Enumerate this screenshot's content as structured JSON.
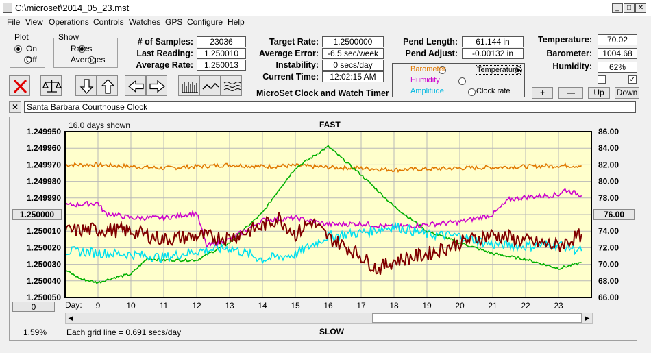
{
  "window": {
    "title": "C:\\microset\\2014_05_23.mst",
    "minimize": "_",
    "maximize": "□",
    "close": "✕"
  },
  "menu": [
    "File",
    "View",
    "Operations",
    "Controls",
    "Watches",
    "GPS",
    "Configure",
    "Help"
  ],
  "plot_group": {
    "title": "Plot",
    "on": "On",
    "off": "Off",
    "selected": "On"
  },
  "show_group": {
    "title": "Show",
    "rates": "Rates",
    "averages": "Averages",
    "selected": "Rates"
  },
  "stats": {
    "samples_label": "# of Samples:",
    "samples": "23036",
    "last_label": "Last Reading:",
    "last": "1.250010",
    "avg_label": "Average Rate:",
    "avg": "1.250013",
    "target_label": "Target Rate:",
    "target": "1.2500000",
    "avgerr_label": "Average Error:",
    "avgerr": "-6.5 sec/week",
    "instab_label": "Instability:",
    "instab": "0 secs/day",
    "time_label": "Current Time:",
    "time": "12:02:15 AM",
    "pendlen_label": "Pend Length:",
    "pendlen": "61.144 in",
    "pendadj_label": "Pend Adjust:",
    "pendadj": "-0.00132 in",
    "temp_label": "Temperature:",
    "temp": "70.02",
    "baro_label": "Barometer:",
    "baro": "1004.68",
    "hum_label": "Humidity:",
    "hum": "62%"
  },
  "app_caption": "MicroSet Clock and Watch Timer",
  "aux_options": {
    "barometer": "Barometer",
    "temperature": "Temperature",
    "humidity": "Humidity",
    "amplitude": "Amplitude",
    "clockrate": "Clock rate",
    "selected": "Temperature",
    "colors": {
      "barometer": "#e07800",
      "temperature": "#000000",
      "humidity": "#cc00cc",
      "amplitude": "#00b8e0",
      "clockrate": "#000000"
    }
  },
  "scale_buttons": {
    "plus": "+",
    "minus": "—",
    "up": "Up",
    "down": "Down"
  },
  "checkboxes": {
    "left": "",
    "right": "✓"
  },
  "toolbar_icons": [
    "clear-icon",
    "balance-icon",
    "arrow-down-icon",
    "arrow-up-icon",
    "arrow-left-icon",
    "arrow-right-icon",
    "bars-icon",
    "wave-icon",
    "multi-wave-icon"
  ],
  "watch_name": {
    "close": "✕",
    "value": "Santa Barbara Courthouse Clock"
  },
  "plot": {
    "days_shown": "16.0 days shown",
    "fast": "FAST",
    "slow": "SLOW",
    "left_center": "1.250000",
    "right_center": "76.00",
    "bottom_left": "0",
    "percent": "1.59%",
    "grid_note": "Each grid line = 0.691 secs/day",
    "day_label": "Day:"
  },
  "chart_data": {
    "type": "line",
    "bg": "#ffffcc",
    "xlabel": "Day:",
    "x_ticks": [
      9,
      10,
      11,
      12,
      13,
      14,
      15,
      16,
      17,
      18,
      19,
      20,
      21,
      22,
      23
    ],
    "xlim": [
      8.0,
      24.0
    ],
    "y_left_ticks": [
      "1.249950",
      "1.249960",
      "1.249970",
      "1.249980",
      "1.249990",
      "1.250000",
      "1.250010",
      "1.250020",
      "1.250030",
      "1.250040",
      "1.250050"
    ],
    "ylim_left": [
      1.24995,
      1.25005
    ],
    "y_right_ticks": [
      "86.00",
      "84.00",
      "82.00",
      "80.00",
      "78.00",
      "76.00",
      "74.00",
      "72.00",
      "70.00",
      "68.00",
      "66.00"
    ],
    "ylim_right": [
      66,
      86
    ],
    "series": [
      {
        "name": "",
        "color": "#e07800",
        "axis": "right",
        "x": [
          8.0,
          9,
          10,
          11,
          12,
          13,
          14,
          15,
          16,
          17,
          18,
          19,
          20,
          21,
          22,
          23,
          23.7
        ],
        "values": [
          82.0,
          82.0,
          81.8,
          81.6,
          81.8,
          82.0,
          81.8,
          81.9,
          81.7,
          81.6,
          81.4,
          81.5,
          81.6,
          81.7,
          81.8,
          81.9,
          81.9
        ]
      },
      {
        "name": "",
        "color": "#00b000",
        "axis": "right",
        "x": [
          8.0,
          8.5,
          9,
          9.5,
          10,
          10.5,
          11,
          12,
          13,
          14,
          14.5,
          15,
          16,
          17,
          18,
          19,
          20,
          21,
          22,
          23,
          23.7
        ],
        "values": [
          69.3,
          68.2,
          67.8,
          68.4,
          68.8,
          70.7,
          70.5,
          70.5,
          72.6,
          76.2,
          79.0,
          81.6,
          84.2,
          80.8,
          77.0,
          74.0,
          72.6,
          71.3,
          70.6,
          69.5,
          70.2
        ]
      },
      {
        "name": "",
        "color": "#cc00cc",
        "axis": "right",
        "x": [
          8.0,
          9,
          9.2,
          10,
          11,
          12,
          12.3,
          13,
          14,
          15,
          16,
          17,
          18,
          19,
          20,
          21,
          21.5,
          22,
          23,
          23.2,
          23.7
        ],
        "values": [
          77.1,
          77.4,
          76.2,
          75.6,
          75.6,
          76.2,
          72.2,
          73.0,
          75.3,
          75.6,
          74.8,
          74.9,
          74.5,
          74.8,
          75.1,
          76.0,
          77.8,
          78.1,
          78.4,
          79.0,
          78.3
        ]
      },
      {
        "name": "",
        "color": "#00e0f0",
        "axis": "right",
        "x": [
          8.0,
          9,
          10,
          11,
          12,
          13,
          14,
          15,
          16,
          17,
          18,
          19,
          20,
          21,
          22,
          23,
          23.7
        ],
        "values": [
          71.6,
          71.4,
          71.2,
          70.8,
          71.6,
          72.0,
          70.6,
          71.2,
          73.4,
          73.8,
          74.6,
          73.6,
          73.4,
          72.4,
          72.2,
          72.4,
          71.6
        ]
      },
      {
        "name": "",
        "color": "#800000",
        "axis": "right",
        "x": [
          8.0,
          9,
          10,
          11,
          12,
          13,
          14,
          14.5,
          15,
          15.5,
          16,
          16.5,
          17,
          17.5,
          18,
          19,
          20,
          21,
          22,
          23,
          23.7
        ],
        "values": [
          74.0,
          74.2,
          74.0,
          73.0,
          73.4,
          73.2,
          74.6,
          75.6,
          73.6,
          75.2,
          73.2,
          72.2,
          71.0,
          69.4,
          70.4,
          71.2,
          72.6,
          73.6,
          72.8,
          72.2,
          73.6
        ]
      }
    ]
  }
}
